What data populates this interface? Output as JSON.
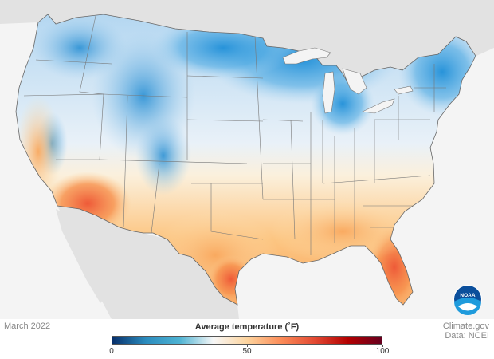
{
  "footer": {
    "date": "March 2022",
    "credit": "Climate.gov",
    "data_source": "Data: NCEI"
  },
  "legend": {
    "title": "Average temperature (˚F)",
    "min": 0,
    "max": 100,
    "ticks": [
      {
        "value": 0,
        "label": "0"
      },
      {
        "value": 50,
        "label": "50"
      },
      {
        "value": 100,
        "label": "100"
      }
    ],
    "colors": [
      "#08306b",
      "#2b8cbe",
      "#4eb3d3",
      "#f7f7f7",
      "#fdd49e",
      "#fc8d59",
      "#e34a33",
      "#b30000",
      "#67001f"
    ]
  },
  "logo": {
    "text": "NOAA"
  },
  "map": {
    "ocean_color": "#f4f4f4",
    "land_color": "#e2e2e2",
    "border_color": "#777777"
  }
}
